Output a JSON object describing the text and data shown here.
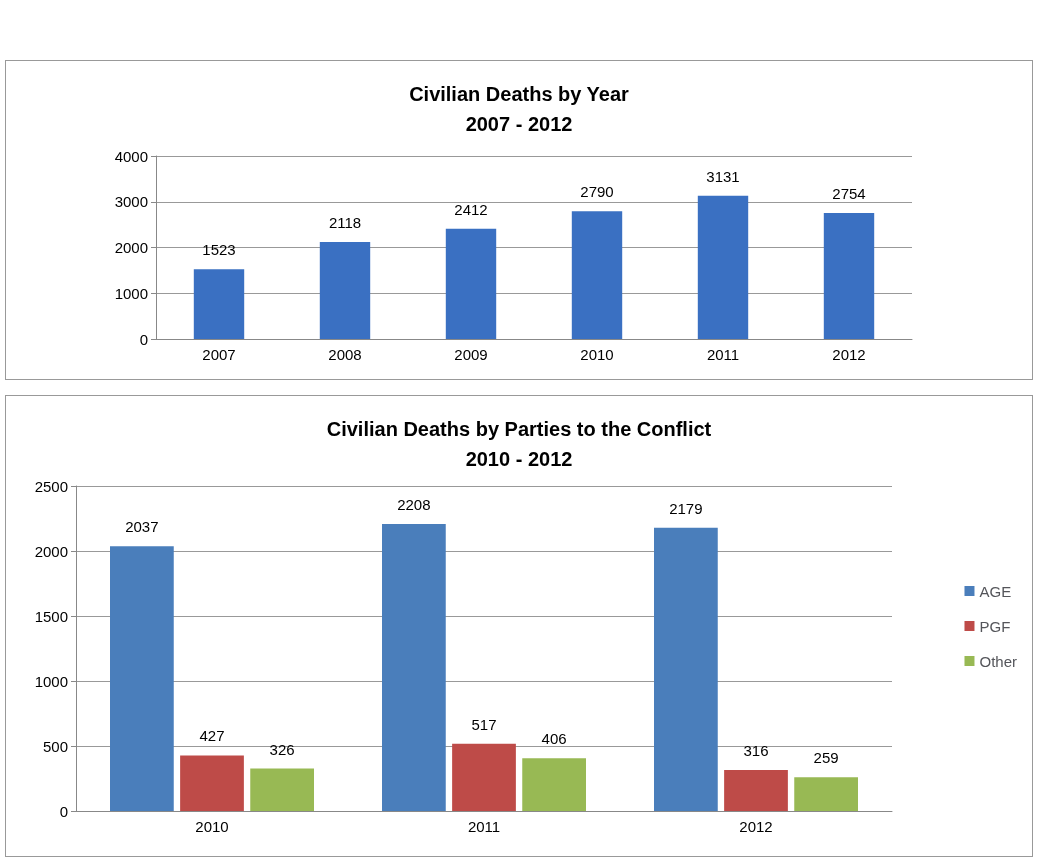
{
  "chart_data": [
    {
      "type": "bar",
      "title": "Civilian Deaths by Year",
      "subtitle": "2007 - 2012",
      "categories": [
        "2007",
        "2008",
        "2009",
        "2010",
        "2011",
        "2012"
      ],
      "values": [
        1523,
        2118,
        2412,
        2790,
        3131,
        2754
      ],
      "color": "#3a70c2",
      "ylim": [
        0,
        4000
      ],
      "yticks": [
        0,
        1000,
        2000,
        3000,
        4000
      ],
      "grid": "y",
      "data_labels": true
    },
    {
      "type": "bar",
      "title": "Civilian Deaths by Parties to the Conflict",
      "subtitle": "2010 - 2012",
      "categories": [
        "2010",
        "2011",
        "2012"
      ],
      "series": [
        {
          "name": "AGE",
          "color": "#4a7ebb",
          "values": [
            2037,
            2208,
            2179
          ]
        },
        {
          "name": "PGF",
          "color": "#be4b48",
          "values": [
            427,
            517,
            316
          ]
        },
        {
          "name": "Other",
          "color": "#98b954",
          "values": [
            326,
            406,
            259
          ]
        }
      ],
      "ylim": [
        0,
        2500
      ],
      "yticks": [
        0,
        500,
        1000,
        1500,
        2000,
        2500
      ],
      "grid": "y",
      "legend": "right",
      "data_labels": true
    }
  ]
}
